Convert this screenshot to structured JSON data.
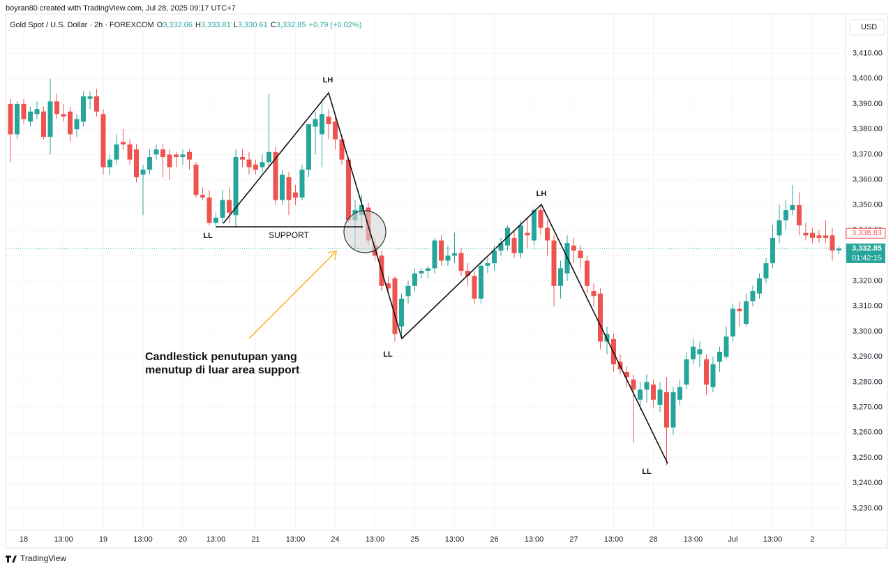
{
  "chart_data": {
    "type": "candlestick",
    "credit": "boyran80 created with TradingView.com, Jul 28, 2025 09:17 UTC+7",
    "title": "Gold Spot / U.S. Dollar · 2h · FOREXCOM",
    "legend_values": [
      {
        "key": "O",
        "value": "3,332.06"
      },
      {
        "key": "H",
        "value": "3,333.81"
      },
      {
        "key": "L",
        "value": "3,330.61"
      },
      {
        "key": "C",
        "value": "3,332.85"
      }
    ],
    "change": "+0.79 (+0.02%)",
    "currency": "USD",
    "brand": "TradingView",
    "up_color": "#26a69a",
    "down_color": "#ef5350",
    "candles": [
      [
        3390,
        3392,
        3367,
        3378
      ],
      [
        3378,
        3391,
        3376,
        3390
      ],
      [
        3390,
        3392,
        3382,
        3384
      ],
      [
        3383,
        3389,
        3381,
        3387
      ],
      [
        3386,
        3391,
        3384,
        3388
      ],
      [
        3387,
        3389,
        3376,
        3377
      ],
      [
        3377,
        3400,
        3370,
        3391
      ],
      [
        3391,
        3394,
        3384,
        3386
      ],
      [
        3386,
        3390,
        3383,
        3385
      ],
      [
        3387,
        3389,
        3375,
        3378
      ],
      [
        3380,
        3386,
        3377,
        3384
      ],
      [
        3383,
        3395,
        3381,
        3393
      ],
      [
        3392,
        3395,
        3388,
        3393
      ],
      [
        3393,
        3396,
        3385,
        3387
      ],
      [
        3386,
        3388,
        3362,
        3365
      ],
      [
        3365,
        3370,
        3362,
        3368
      ],
      [
        3368,
        3378,
        3366,
        3374
      ],
      [
        3375,
        3380,
        3372,
        3374
      ],
      [
        3374,
        3376,
        3366,
        3368
      ],
      [
        3372,
        3374,
        3359,
        3361
      ],
      [
        3362,
        3366,
        3346,
        3364
      ],
      [
        3364,
        3372,
        3362,
        3369
      ],
      [
        3370,
        3374,
        3368,
        3372
      ],
      [
        3372,
        3374,
        3361,
        3369
      ],
      [
        3370,
        3372,
        3360,
        3365
      ],
      [
        3370,
        3371,
        3365,
        3369
      ],
      [
        3369,
        3372,
        3366,
        3370
      ],
      [
        3371,
        3372,
        3364,
        3368
      ],
      [
        3366,
        3367,
        3353,
        3354
      ],
      [
        3354,
        3357,
        3352,
        3353
      ],
      [
        3353,
        3356,
        3342,
        3343
      ],
      [
        3343,
        3347,
        3341,
        3345
      ],
      [
        3345,
        3356,
        3343,
        3352
      ],
      [
        3352,
        3357,
        3343,
        3347
      ],
      [
        3346,
        3372,
        3341,
        3369
      ],
      [
        3369,
        3372,
        3365,
        3368
      ],
      [
        3368,
        3371,
        3362,
        3365
      ],
      [
        3366,
        3368,
        3362,
        3364
      ],
      [
        3365,
        3370,
        3363,
        3367
      ],
      [
        3367,
        3394,
        3365,
        3371
      ],
      [
        3371,
        3373,
        3350,
        3352
      ],
      [
        3352,
        3364,
        3350,
        3362
      ],
      [
        3361,
        3363,
        3346,
        3352
      ],
      [
        3355,
        3358,
        3350,
        3353
      ],
      [
        3353,
        3366,
        3352,
        3364
      ],
      [
        3364,
        3382,
        3361,
        3382
      ],
      [
        3381,
        3387,
        3370,
        3384
      ],
      [
        3378,
        3392,
        3365,
        3386
      ],
      [
        3385,
        3388,
        3376,
        3382
      ],
      [
        3383,
        3385,
        3372,
        3376
      ],
      [
        3376,
        3378,
        3366,
        3368
      ],
      [
        3368,
        3369,
        3343,
        3344
      ],
      [
        3344,
        3352,
        3333,
        3348
      ],
      [
        3346,
        3354,
        3340,
        3350
      ],
      [
        3349,
        3351,
        3334,
        3336
      ],
      [
        3334,
        3337,
        3328,
        3330
      ],
      [
        3330,
        3332,
        3316,
        3318
      ],
      [
        3319,
        3322,
        3315,
        3317
      ],
      [
        3321,
        3322,
        3296,
        3299
      ],
      [
        3302,
        3315,
        3297,
        3313
      ],
      [
        3314,
        3320,
        3311,
        3318
      ],
      [
        3318,
        3325,
        3316,
        3323
      ],
      [
        3323,
        3325,
        3321,
        3324
      ],
      [
        3324,
        3326,
        3321,
        3325
      ],
      [
        3325,
        3337,
        3323,
        3336
      ],
      [
        3336,
        3338,
        3326,
        3328
      ],
      [
        3328,
        3334,
        3326,
        3330
      ],
      [
        3330,
        3339,
        3327,
        3331
      ],
      [
        3331,
        3333,
        3322,
        3324
      ],
      [
        3324,
        3327,
        3318,
        3322
      ],
      [
        3322,
        3324,
        3311,
        3313
      ],
      [
        3313,
        3328,
        3311,
        3326
      ],
      [
        3326,
        3329,
        3323,
        3327
      ],
      [
        3327,
        3334,
        3324,
        3332
      ],
      [
        3332,
        3337,
        3330,
        3335
      ],
      [
        3334,
        3342,
        3332,
        3341
      ],
      [
        3337,
        3340,
        3329,
        3331
      ],
      [
        3331,
        3344,
        3329,
        3342
      ],
      [
        3339,
        3345,
        3333,
        3338
      ],
      [
        3336,
        3349,
        3334,
        3348
      ],
      [
        3348,
        3350,
        3338,
        3341
      ],
      [
        3341,
        3344,
        3330,
        3336
      ],
      [
        3336,
        3338,
        3310,
        3318
      ],
      [
        3318,
        3328,
        3313,
        3325
      ],
      [
        3323,
        3338,
        3320,
        3335
      ],
      [
        3334,
        3337,
        3327,
        3332
      ],
      [
        3332,
        3334,
        3325,
        3329
      ],
      [
        3328,
        3330,
        3315,
        3318
      ],
      [
        3316,
        3319,
        3310,
        3314
      ],
      [
        3315,
        3317,
        3293,
        3296
      ],
      [
        3296,
        3302,
        3291,
        3299
      ],
      [
        3297,
        3299,
        3284,
        3287
      ],
      [
        3288,
        3291,
        3283,
        3285
      ],
      [
        3284,
        3286,
        3278,
        3282
      ],
      [
        3281,
        3283,
        3256,
        3277
      ],
      [
        3273,
        3280,
        3269,
        3277
      ],
      [
        3277,
        3283,
        3272,
        3280
      ],
      [
        3279,
        3281,
        3270,
        3273
      ],
      [
        3271,
        3280,
        3268,
        3277
      ],
      [
        3276,
        3282,
        3247,
        3262
      ],
      [
        3262,
        3278,
        3259,
        3276
      ],
      [
        3273,
        3281,
        3271,
        3278
      ],
      [
        3279,
        3292,
        3277,
        3289
      ],
      [
        3289,
        3297,
        3287,
        3294
      ],
      [
        3291,
        3296,
        3286,
        3293
      ],
      [
        3289,
        3291,
        3275,
        3279
      ],
      [
        3278,
        3290,
        3276,
        3287
      ],
      [
        3288,
        3294,
        3284,
        3292
      ],
      [
        3290,
        3302,
        3289,
        3298
      ],
      [
        3298,
        3311,
        3296,
        3309
      ],
      [
        3309,
        3312,
        3302,
        3308
      ],
      [
        3303,
        3315,
        3302,
        3312
      ],
      [
        3312,
        3318,
        3310,
        3316
      ],
      [
        3315,
        3323,
        3313,
        3321
      ],
      [
        3321,
        3329,
        3319,
        3327
      ],
      [
        3327,
        3342,
        3325,
        3337
      ],
      [
        3338,
        3350,
        3335,
        3344
      ],
      [
        3344,
        3352,
        3340,
        3348
      ],
      [
        3348,
        3358,
        3346,
        3350
      ],
      [
        3350,
        3355,
        3338,
        3342
      ],
      [
        3339,
        3343,
        3336,
        3338
      ],
      [
        3339,
        3341,
        3335,
        3337
      ],
      [
        3338,
        3340,
        3335,
        3337
      ],
      [
        3338,
        3344,
        3335,
        3337
      ],
      [
        3338,
        3341,
        3328,
        3332
      ],
      [
        3332.06,
        3333.81,
        3330.61,
        3332.85
      ]
    ],
    "ylim": [
      3221.3,
      3425.6
    ],
    "yticks": [
      {
        "value": 3230,
        "label": "3,230.00"
      },
      {
        "value": 3240,
        "label": "3,240.00"
      },
      {
        "value": 3250,
        "label": "3,250.00"
      },
      {
        "value": 3260,
        "label": "3,260.00"
      },
      {
        "value": 3270,
        "label": "3,270.00"
      },
      {
        "value": 3280,
        "label": "3,280.00"
      },
      {
        "value": 3290,
        "label": "3,290.00"
      },
      {
        "value": 3300,
        "label": "3,300.00"
      },
      {
        "value": 3310,
        "label": "3,310.00"
      },
      {
        "value": 3320,
        "label": "3,320.00"
      },
      {
        "value": 3330,
        "label": "3,330.00"
      },
      {
        "value": 3340,
        "label": "3,340.00"
      },
      {
        "value": 3350,
        "label": "3,350.00"
      },
      {
        "value": 3360,
        "label": "3,360.00"
      },
      {
        "value": 3370,
        "label": "3,370.00"
      },
      {
        "value": 3380,
        "label": "3,380.00"
      },
      {
        "value": 3390,
        "label": "3,390.00"
      },
      {
        "value": 3400,
        "label": "3,400.00"
      },
      {
        "value": 3410,
        "label": "3,410.00"
      }
    ],
    "xticks": [
      {
        "value": 2,
        "label": "18"
      },
      {
        "value": 8,
        "label": "13:00"
      },
      {
        "value": 14,
        "label": "19"
      },
      {
        "value": 20,
        "label": "13:00"
      },
      {
        "value": 26,
        "label": "20"
      },
      {
        "value": 31,
        "label": "13:00"
      },
      {
        "value": 37,
        "label": "21"
      },
      {
        "value": 43,
        "label": "13:00"
      },
      {
        "value": 49,
        "label": "24"
      },
      {
        "value": 55,
        "label": "13:00"
      },
      {
        "value": 61,
        "label": "25"
      },
      {
        "value": 67,
        "label": "13:00"
      },
      {
        "value": 73,
        "label": "26"
      },
      {
        "value": 79,
        "label": "13:00"
      },
      {
        "value": 85,
        "label": "27"
      },
      {
        "value": 91,
        "label": "13:00"
      },
      {
        "value": 97,
        "label": "28"
      },
      {
        "value": 103,
        "label": "13:00"
      },
      {
        "value": 109,
        "label": "Jul"
      },
      {
        "value": 115,
        "label": "13:00"
      },
      {
        "value": 121,
        "label": "2"
      }
    ],
    "price_markers": [
      {
        "value": 3338.83,
        "label": "3,338.83",
        "color": "#ef5350",
        "style": "outline"
      },
      {
        "value": 3332.85,
        "label": "3,332.85",
        "countdown": "01:42:15",
        "color": "#26a69a",
        "style": "filled"
      }
    ],
    "annotations": [
      "LH",
      "LL",
      "SUPPORT",
      "LL",
      "LH",
      "LL",
      "Candlestick penutupan yang",
      "menutup di luar area support"
    ]
  }
}
